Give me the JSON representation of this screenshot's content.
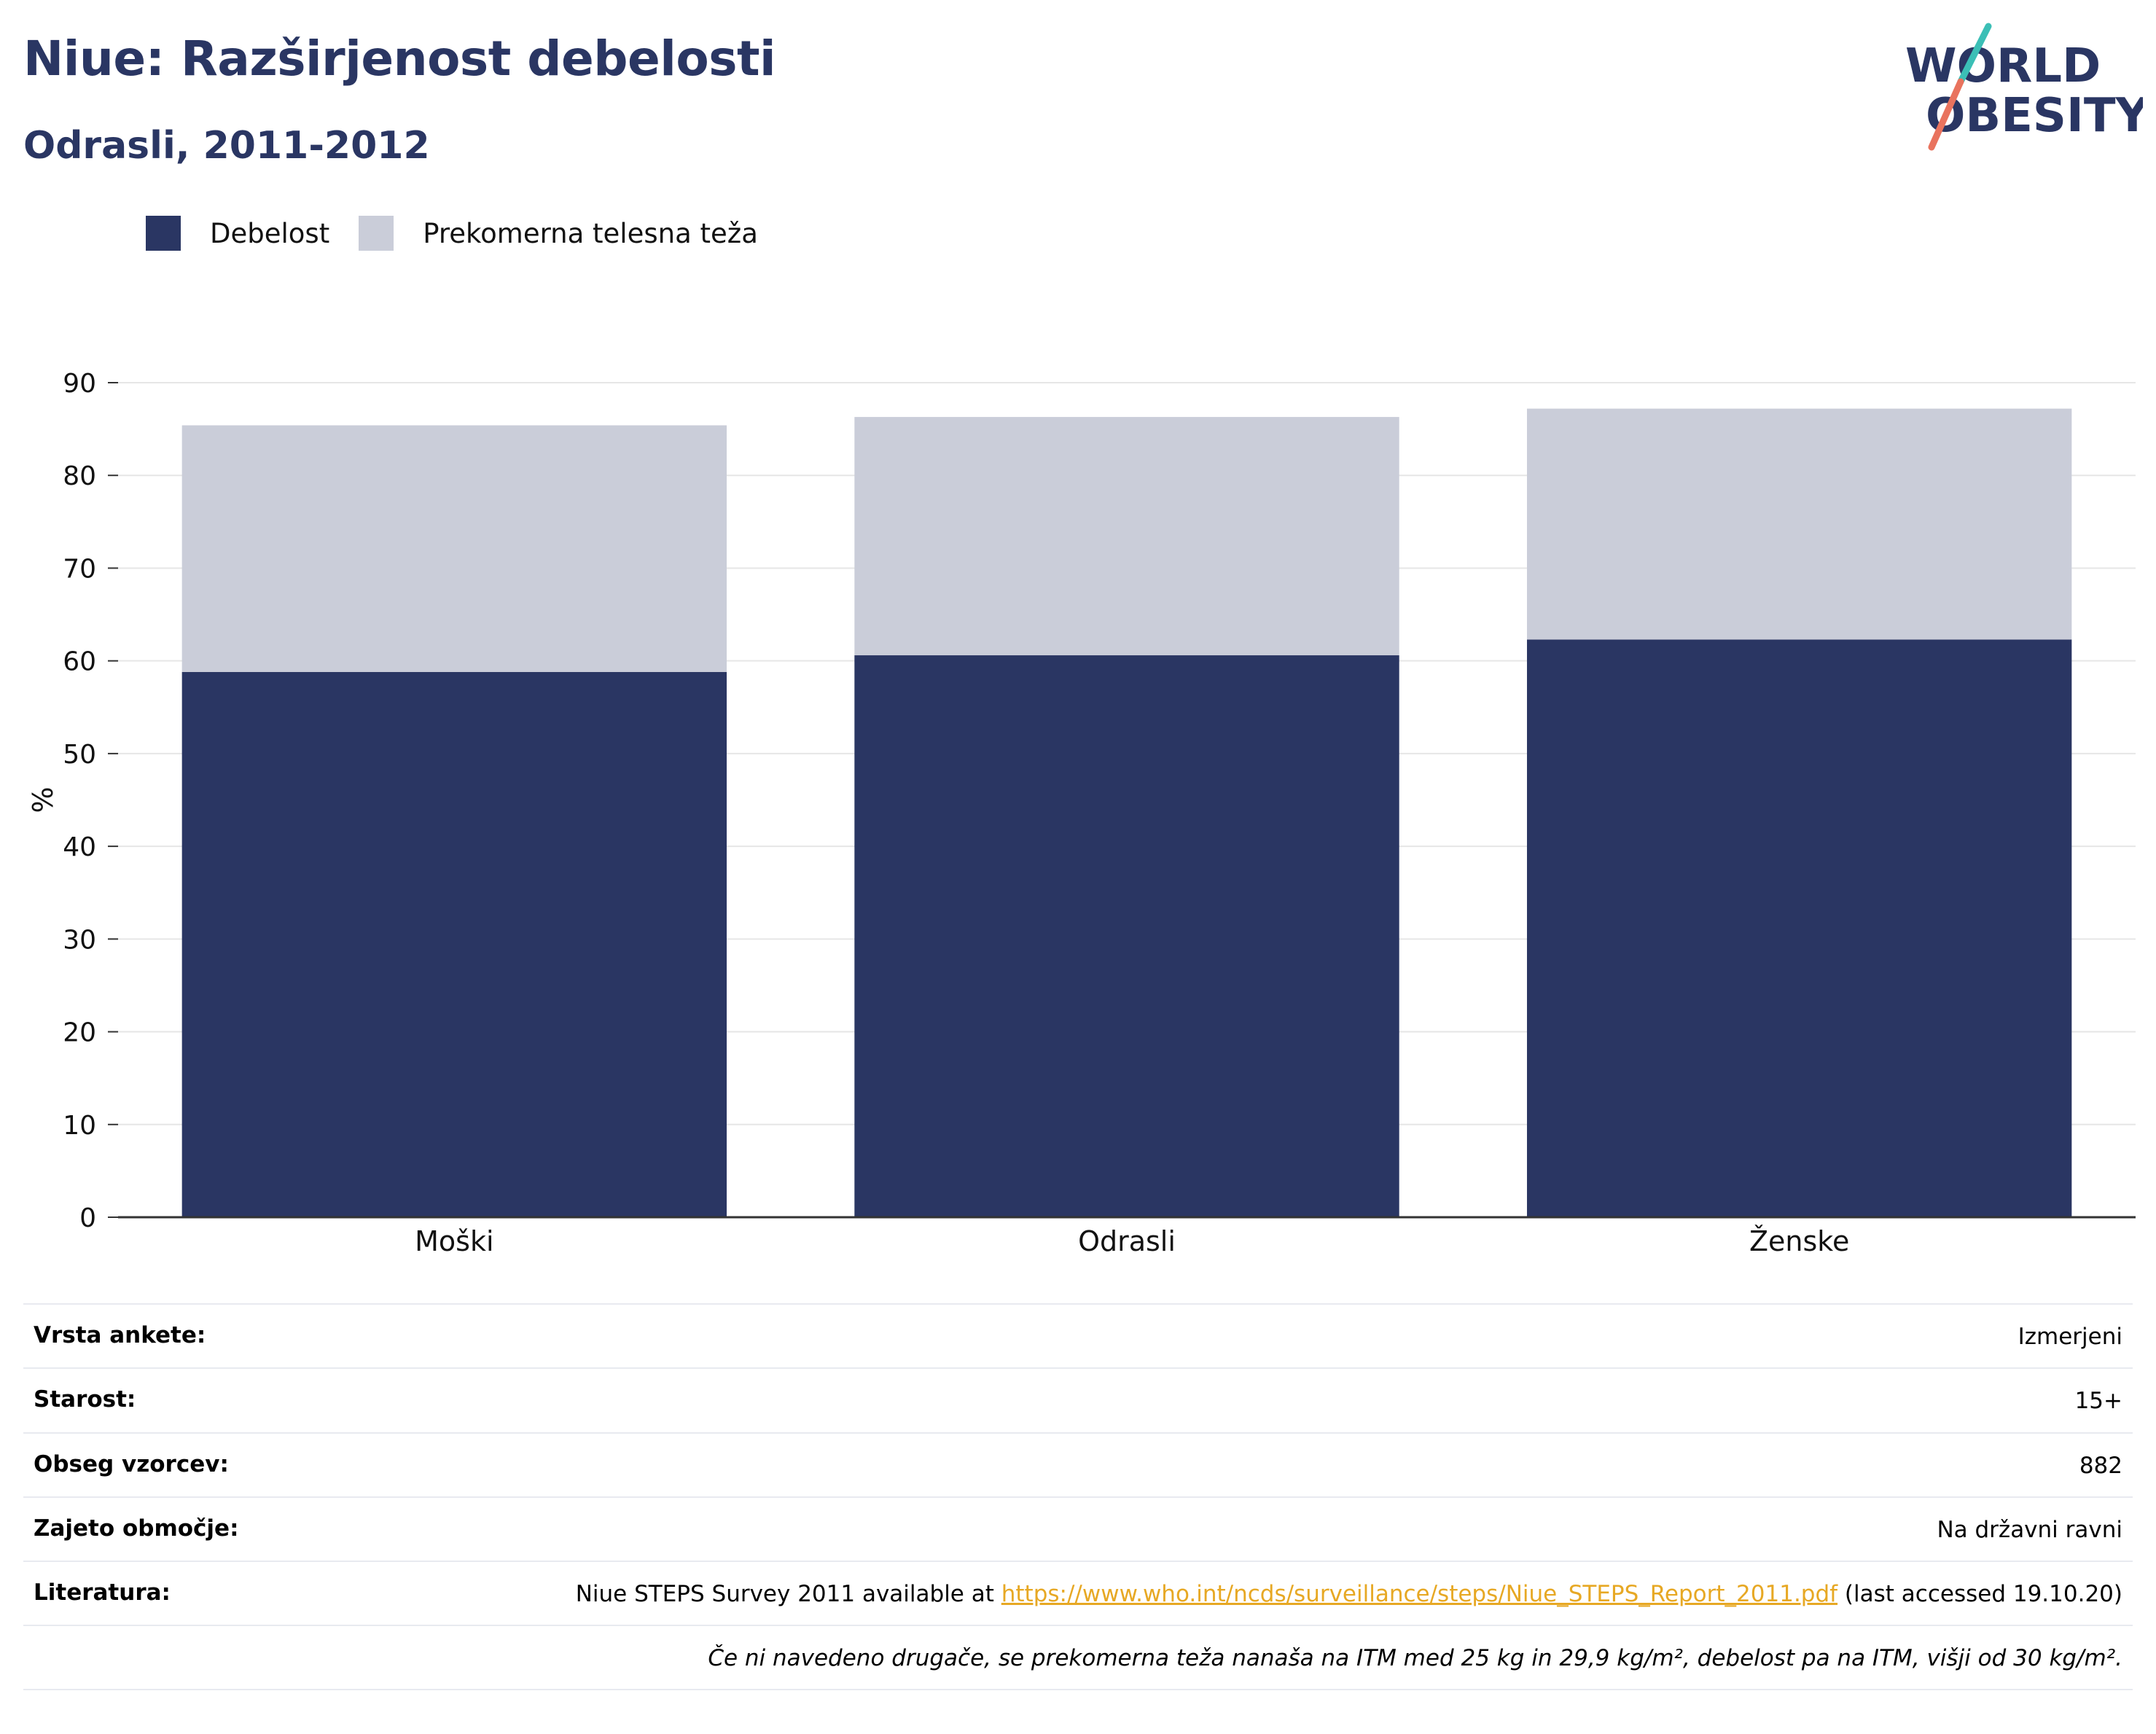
{
  "header": {
    "title": "Niue: Razširjenost debelosti",
    "subtitle": "Odrasli, 2011-2012",
    "logo": {
      "line1": "WORLD",
      "line2": "OBESITY"
    }
  },
  "colors": {
    "obesity": "#2a3663",
    "overweight": "#cacdd9",
    "title": "#2a3663",
    "logo_teal": "#3bbfb6",
    "logo_coral": "#e9735e",
    "link": "#e7a824"
  },
  "chart_data": {
    "type": "bar",
    "stacked": true,
    "categories": [
      "Moški",
      "Odrasli",
      "Ženske"
    ],
    "series": [
      {
        "name": "Debelost",
        "values": [
          58.8,
          60.6,
          62.3
        ]
      },
      {
        "name": "Prekomerna telesna teža",
        "values": [
          26.6,
          25.7,
          24.9
        ]
      }
    ],
    "ylabel": "%",
    "ylim": [
      0,
      90
    ],
    "yticks": [
      0,
      10,
      20,
      30,
      40,
      50,
      60,
      70,
      80,
      90
    ],
    "grid": true,
    "legend": "top-left"
  },
  "meta": {
    "rows": [
      {
        "label": "Vrsta ankete:",
        "value": "Izmerjeni"
      },
      {
        "label": "Starost:",
        "value": "15+"
      },
      {
        "label": "Obseg vzorcev:",
        "value": "882"
      },
      {
        "label": "Zajeto območje:",
        "value": "Na državni ravni"
      }
    ],
    "literature": {
      "label": "Literatura:",
      "prefix": "Niue STEPS Survey 2011 available at ",
      "link": "https://www.who.int/ncds/surveillance/steps/Niue_STEPS_Report_2011.pdf",
      "suffix": " (last accessed 19.10.20)"
    },
    "note": "Če ni navedeno drugače, se prekomerna teža nanaša na ITM med 25 kg in 29,9 kg/m², debelost pa na ITM, višji od 30 kg/m²."
  }
}
